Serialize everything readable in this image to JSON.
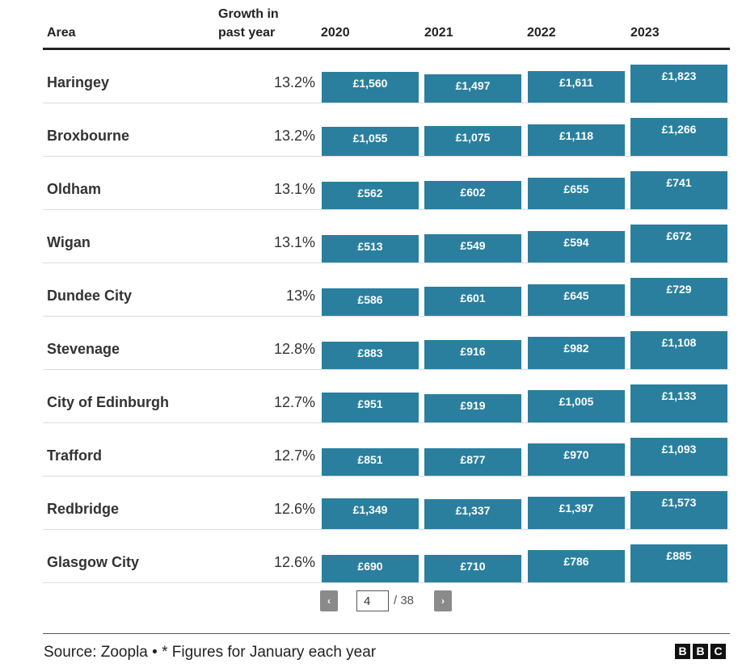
{
  "chart_data": {
    "type": "table",
    "columns": [
      "Area",
      "Growth in past year",
      "2020",
      "2021",
      "2022",
      "2023"
    ],
    "years": [
      "2020",
      "2021",
      "2022",
      "2023"
    ],
    "value_scale_max": 1823,
    "rows": [
      {
        "area": "Haringey",
        "growth": "13.2%",
        "values": [
          1560,
          1497,
          1611,
          1823
        ],
        "labels": [
          "£1,560",
          "£1,497",
          "£1,611",
          "£1,823"
        ]
      },
      {
        "area": "Broxbourne",
        "growth": "13.2%",
        "values": [
          1055,
          1075,
          1118,
          1266
        ],
        "labels": [
          "£1,055",
          "£1,075",
          "£1,118",
          "£1,266"
        ]
      },
      {
        "area": "Oldham",
        "growth": "13.1%",
        "values": [
          562,
          602,
          655,
          741
        ],
        "labels": [
          "£562",
          "£602",
          "£655",
          "£741"
        ]
      },
      {
        "area": "Wigan",
        "growth": "13.1%",
        "values": [
          513,
          549,
          594,
          672
        ],
        "labels": [
          "£513",
          "£549",
          "£594",
          "£672"
        ]
      },
      {
        "area": "Dundee City",
        "growth": "13%",
        "values": [
          586,
          601,
          645,
          729
        ],
        "labels": [
          "£586",
          "£601",
          "£645",
          "£729"
        ]
      },
      {
        "area": "Stevenage",
        "growth": "12.8%",
        "values": [
          883,
          916,
          982,
          1108
        ],
        "labels": [
          "£883",
          "£916",
          "£982",
          "£1,108"
        ]
      },
      {
        "area": "City of Edinburgh",
        "growth": "12.7%",
        "values": [
          951,
          919,
          1005,
          1133
        ],
        "labels": [
          "£951",
          "£919",
          "£1,005",
          "£1,133"
        ]
      },
      {
        "area": "Trafford",
        "growth": "12.7%",
        "values": [
          851,
          877,
          970,
          1093
        ],
        "labels": [
          "£851",
          "£877",
          "£970",
          "£1,093"
        ]
      },
      {
        "area": "Redbridge",
        "growth": "12.6%",
        "values": [
          1349,
          1337,
          1397,
          1573
        ],
        "labels": [
          "£1,349",
          "£1,337",
          "£1,397",
          "£1,573"
        ]
      },
      {
        "area": "Glasgow City",
        "growth": "12.6%",
        "values": [
          690,
          710,
          786,
          885
        ],
        "labels": [
          "£690",
          "£710",
          "£786",
          "£885"
        ]
      }
    ]
  },
  "header": {
    "area": "Area",
    "growth_line1": "Growth in",
    "growth_line2": "past year",
    "years": [
      "2020",
      "2021",
      "2022",
      "2023"
    ]
  },
  "pagination": {
    "prev_symbol": "‹",
    "next_symbol": "›",
    "current_page": "4",
    "total_text": "/ 38"
  },
  "footer": {
    "source": "Source: Zoopla • * Figures for January each year",
    "logo_letters": [
      "B",
      "B",
      "C"
    ]
  },
  "colors": {
    "bar": "#2a7f9e",
    "bar_text": "#ffffff"
  }
}
